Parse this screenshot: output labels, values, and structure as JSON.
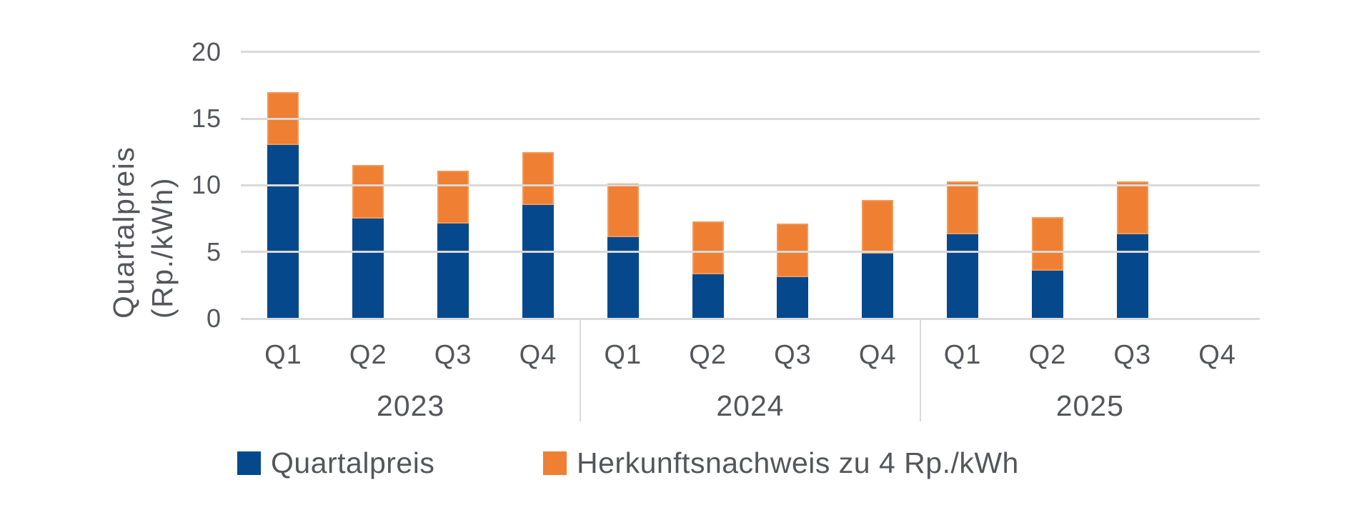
{
  "chart_data": {
    "type": "bar",
    "stacked": true,
    "title": "",
    "ylabel": "Quartalpreis (Rp./kWh)",
    "ylabel_lines": [
      "Quartalpreis",
      "(Rp./kWh)"
    ],
    "ylim": [
      0,
      20
    ],
    "yticks": [
      0,
      5,
      10,
      15,
      20
    ],
    "grid": "horizontal",
    "gridline_color": "#D9D9D9",
    "text_color": "#54565B",
    "quarters": [
      "Q1",
      "Q2",
      "Q3",
      "Q4",
      "Q1",
      "Q2",
      "Q3",
      "Q4",
      "Q1",
      "Q2",
      "Q3",
      "Q4"
    ],
    "year_groups": [
      {
        "label": "2023",
        "span": 4
      },
      {
        "label": "2024",
        "span": 4
      },
      {
        "label": "2025",
        "span": 4
      }
    ],
    "categories": [
      "2023 Q1",
      "2023 Q2",
      "2023 Q3",
      "2023 Q4",
      "2024 Q1",
      "2024 Q2",
      "2024 Q3",
      "2024 Q4",
      "2025 Q1",
      "2025 Q2",
      "2025 Q3",
      "2025 Q4"
    ],
    "series": [
      {
        "name": "Quartalpreis",
        "color": "#05498C",
        "values": [
          13.0,
          7.5,
          7.1,
          8.5,
          6.1,
          3.3,
          3.1,
          4.9,
          6.3,
          3.6,
          6.3,
          null
        ]
      },
      {
        "name": "Herkunftsnachweis zu 4 Rp./kWh",
        "color": "#EE7F33",
        "values": [
          4,
          4,
          4,
          4,
          4,
          4,
          4,
          4,
          4,
          4,
          4,
          null
        ]
      }
    ],
    "stack_totals": [
      17.0,
      11.5,
      11.1,
      12.5,
      10.1,
      7.3,
      7.1,
      8.9,
      10.3,
      7.6,
      10.3,
      null
    ],
    "legend_position": "bottom"
  }
}
